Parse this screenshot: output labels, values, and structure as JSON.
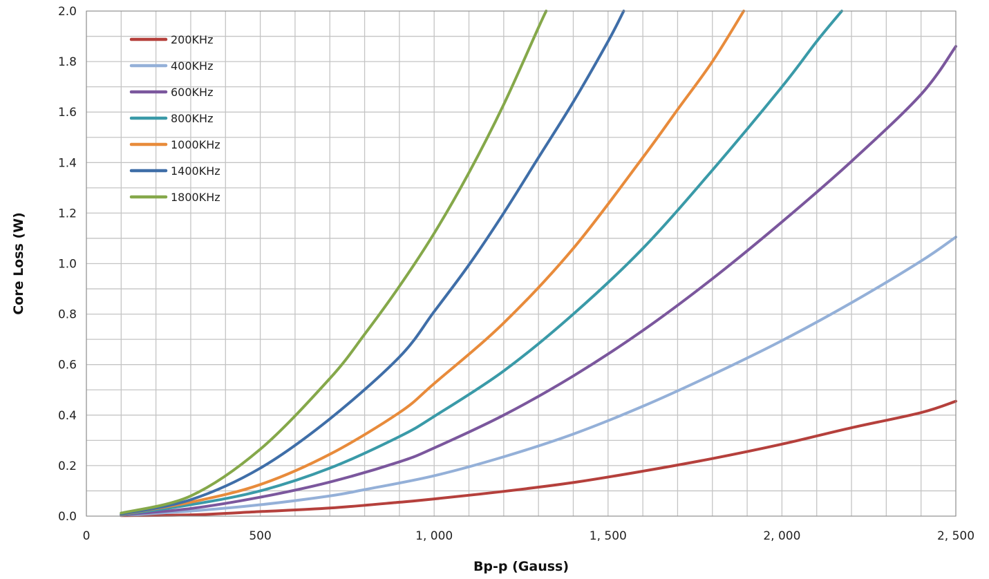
{
  "chart_data": {
    "type": "line",
    "xlabel": "Bp-p (Gauss)",
    "ylabel": "Core Loss (W)",
    "xlim": [
      0,
      2500
    ],
    "ylim": [
      0,
      2.0
    ],
    "xticks": [
      0,
      500,
      1000,
      1500,
      2000,
      2500
    ],
    "xtick_labels": [
      "0",
      "500",
      "1, 000",
      "1, 500",
      "2, 000",
      "2, 500"
    ],
    "yticks": [
      0,
      0.2,
      0.4,
      0.6,
      0.8,
      1.0,
      1.2,
      1.4,
      1.6,
      1.8,
      2.0
    ],
    "ytick_labels": [
      "0.0",
      "0.2",
      "0.4",
      "0.6",
      "0.8",
      "1.0",
      "1.2",
      "1.4",
      "1.6",
      "1.8",
      "2.0"
    ],
    "grid": true,
    "grid_x_step": 100,
    "grid_y_step": 0.1,
    "legend_position": "top-left",
    "series": [
      {
        "name": "200KHz",
        "color": "#b5403c",
        "points": [
          [
            100,
            0.002
          ],
          [
            300,
            0.005
          ],
          [
            500,
            0.018
          ],
          [
            700,
            0.032
          ],
          [
            900,
            0.055
          ],
          [
            1000,
            0.068
          ],
          [
            1200,
            0.098
          ],
          [
            1400,
            0.133
          ],
          [
            1600,
            0.178
          ],
          [
            1800,
            0.228
          ],
          [
            2000,
            0.285
          ],
          [
            2200,
            0.35
          ],
          [
            2400,
            0.41
          ],
          [
            2500,
            0.455
          ]
        ]
      },
      {
        "name": "400KHz",
        "color": "#94b0d8",
        "points": [
          [
            100,
            0.003
          ],
          [
            300,
            0.02
          ],
          [
            500,
            0.045
          ],
          [
            700,
            0.08
          ],
          [
            800,
            0.105
          ],
          [
            1000,
            0.16
          ],
          [
            1200,
            0.235
          ],
          [
            1400,
            0.325
          ],
          [
            1600,
            0.435
          ],
          [
            1800,
            0.56
          ],
          [
            2000,
            0.695
          ],
          [
            2200,
            0.845
          ],
          [
            2400,
            1.01
          ],
          [
            2500,
            1.105
          ]
        ]
      },
      {
        "name": "600KHz",
        "color": "#7b579d",
        "points": [
          [
            100,
            0.005
          ],
          [
            300,
            0.03
          ],
          [
            500,
            0.075
          ],
          [
            700,
            0.135
          ],
          [
            900,
            0.215
          ],
          [
            1000,
            0.27
          ],
          [
            1200,
            0.4
          ],
          [
            1400,
            0.555
          ],
          [
            1600,
            0.735
          ],
          [
            1800,
            0.94
          ],
          [
            2000,
            1.165
          ],
          [
            2200,
            1.405
          ],
          [
            2400,
            1.67
          ],
          [
            2500,
            1.86
          ]
        ]
      },
      {
        "name": "800KHz",
        "color": "#3a9aa8",
        "points": [
          [
            100,
            0.006
          ],
          [
            300,
            0.045
          ],
          [
            500,
            0.1
          ],
          [
            700,
            0.19
          ],
          [
            900,
            0.315
          ],
          [
            1000,
            0.395
          ],
          [
            1200,
            0.575
          ],
          [
            1400,
            0.8
          ],
          [
            1600,
            1.06
          ],
          [
            1800,
            1.37
          ],
          [
            2000,
            1.7
          ],
          [
            2100,
            1.88
          ],
          [
            2172,
            2.0
          ]
        ]
      },
      {
        "name": "1000KHz",
        "color": "#e88b3b",
        "points": [
          [
            100,
            0.007
          ],
          [
            300,
            0.055
          ],
          [
            500,
            0.125
          ],
          [
            700,
            0.245
          ],
          [
            900,
            0.41
          ],
          [
            1000,
            0.525
          ],
          [
            1200,
            0.765
          ],
          [
            1400,
            1.06
          ],
          [
            1600,
            1.42
          ],
          [
            1700,
            1.61
          ],
          [
            1800,
            1.8
          ],
          [
            1890,
            2.0
          ]
        ]
      },
      {
        "name": "1400KHz",
        "color": "#3f6ea8",
        "points": [
          [
            100,
            0.008
          ],
          [
            300,
            0.065
          ],
          [
            500,
            0.19
          ],
          [
            700,
            0.385
          ],
          [
            900,
            0.63
          ],
          [
            1000,
            0.81
          ],
          [
            1100,
            0.995
          ],
          [
            1200,
            1.2
          ],
          [
            1300,
            1.42
          ],
          [
            1400,
            1.64
          ],
          [
            1500,
            1.88
          ],
          [
            1545,
            2.0
          ]
        ]
      },
      {
        "name": "1800KHz",
        "color": "#85a84a",
        "points": [
          [
            100,
            0.012
          ],
          [
            300,
            0.08
          ],
          [
            500,
            0.265
          ],
          [
            700,
            0.545
          ],
          [
            800,
            0.72
          ],
          [
            900,
            0.91
          ],
          [
            1000,
            1.12
          ],
          [
            1100,
            1.36
          ],
          [
            1200,
            1.63
          ],
          [
            1300,
            1.935
          ],
          [
            1322,
            2.0
          ]
        ]
      }
    ]
  }
}
